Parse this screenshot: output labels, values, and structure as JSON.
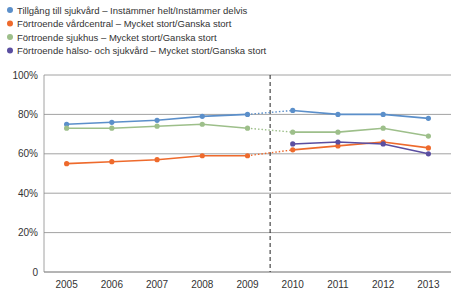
{
  "chart_data": {
    "type": "line",
    "categories": [
      "2005",
      "2006",
      "2007",
      "2008",
      "2009",
      "2010",
      "2011",
      "2012",
      "2013"
    ],
    "series": [
      {
        "name": "Tillgång till sjukvård – Instämmer helt/Instämmer delvis",
        "color": "#5b8fca",
        "marker": "circle",
        "line_style": "solid",
        "values": [
          75,
          76,
          77,
          79,
          80,
          82,
          80,
          80,
          78
        ]
      },
      {
        "name": "Förtroende vårdcentral – Mycket stort/Ganska stort",
        "color": "#ee6a2c",
        "marker": "circle",
        "line_style": "solid",
        "values": [
          55,
          56,
          57,
          59,
          59,
          62,
          64,
          66,
          63
        ]
      },
      {
        "name": "Förtroende sjukhus – Mycket stort/Ganska stort",
        "color": "#9dbf8a",
        "marker": "circle",
        "line_style": "solid",
        "values": [
          73,
          73,
          74,
          75,
          73,
          71,
          71,
          73,
          69
        ]
      },
      {
        "name": "Förtroende hälso- och sjukvård – Mycket stort/Ganska stort",
        "color": "#5a4ea0",
        "marker": "circle",
        "line_style": "solid",
        "values": [
          null,
          null,
          null,
          null,
          null,
          65,
          66,
          65,
          60
        ]
      }
    ],
    "ylim": [
      0,
      100
    ],
    "yticks": [
      0,
      {
        "value": 20,
        "label": "20%"
      },
      {
        "value": 40,
        "label": "40%"
      },
      {
        "value": 60,
        "label": "60%"
      },
      {
        "value": 80,
        "label": "80%"
      },
      {
        "value": 100,
        "label": "100%"
      }
    ],
    "grid": true,
    "legend": "top-left"
  }
}
